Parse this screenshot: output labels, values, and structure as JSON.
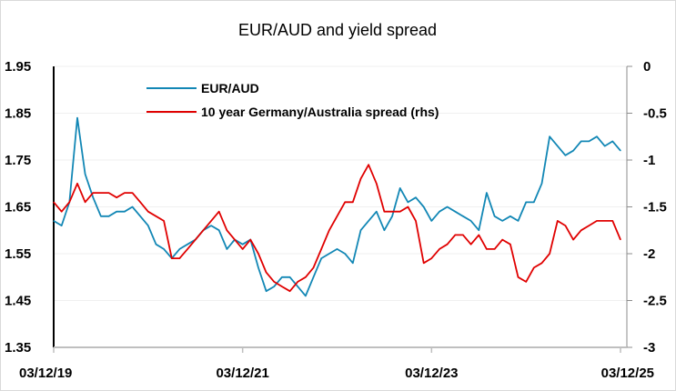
{
  "chart_data": {
    "type": "line",
    "title": "EUR/AUD and yield spread",
    "xlabel": "",
    "ylabel": "",
    "x_tick_labels": [
      "03/12/19",
      "03/12/21",
      "03/12/23",
      "03/12/25"
    ],
    "x_ticks": [
      "2019-12",
      "2021-12",
      "2023-12",
      "2025-12"
    ],
    "y_left": {
      "ylim": [
        1.35,
        1.95
      ],
      "ticks": [
        "1.35",
        "1.45",
        "1.55",
        "1.65",
        "1.75",
        "1.85",
        "1.95"
      ]
    },
    "y_right": {
      "ylim": [
        -3,
        0
      ],
      "ticks": [
        "-3",
        "-2.5",
        "-2",
        "-1.5",
        "-1",
        "-0.5",
        "0"
      ]
    },
    "grid": true,
    "legend_placement": "top-left",
    "x_start": "2019-12",
    "x_step": "monthly",
    "series": [
      {
        "name": "EUR/AUD",
        "axis": "left",
        "color": "#1287b5",
        "values": [
          1.62,
          1.61,
          1.66,
          1.84,
          1.72,
          1.67,
          1.63,
          1.63,
          1.64,
          1.64,
          1.65,
          1.63,
          1.61,
          1.57,
          1.56,
          1.54,
          1.56,
          1.57,
          1.58,
          1.6,
          1.61,
          1.6,
          1.56,
          1.58,
          1.57,
          1.58,
          1.52,
          1.47,
          1.48,
          1.5,
          1.5,
          1.48,
          1.46,
          1.5,
          1.54,
          1.55,
          1.56,
          1.55,
          1.53,
          1.6,
          1.62,
          1.64,
          1.6,
          1.63,
          1.69,
          1.66,
          1.67,
          1.65,
          1.62,
          1.64,
          1.65,
          1.64,
          1.63,
          1.62,
          1.6,
          1.68,
          1.63,
          1.62,
          1.63,
          1.62,
          1.66,
          1.66,
          1.7,
          1.8,
          1.78,
          1.76,
          1.77,
          1.79,
          1.79,
          1.8,
          1.78,
          1.79,
          1.77
        ]
      },
      {
        "name": "10 year Germany/Australia spread (rhs)",
        "axis": "right",
        "color": "#e00000",
        "values": [
          -1.45,
          -1.55,
          -1.45,
          -1.25,
          -1.45,
          -1.35,
          -1.35,
          -1.35,
          -1.4,
          -1.35,
          -1.35,
          -1.45,
          -1.55,
          -1.6,
          -1.65,
          -2.05,
          -2.05,
          -1.95,
          -1.85,
          -1.75,
          -1.65,
          -1.55,
          -1.75,
          -1.85,
          -1.95,
          -1.85,
          -2.0,
          -2.2,
          -2.3,
          -2.35,
          -2.4,
          -2.3,
          -2.25,
          -2.15,
          -1.95,
          -1.75,
          -1.6,
          -1.45,
          -1.45,
          -1.2,
          -1.05,
          -1.25,
          -1.55,
          -1.55,
          -1.55,
          -1.5,
          -1.65,
          -2.1,
          -2.05,
          -1.95,
          -1.9,
          -1.8,
          -1.8,
          -1.9,
          -1.8,
          -1.95,
          -1.95,
          -1.85,
          -1.9,
          -2.25,
          -2.3,
          -2.15,
          -2.1,
          -2.0,
          -1.65,
          -1.7,
          -1.85,
          -1.75,
          -1.7,
          -1.65,
          -1.65,
          -1.65,
          -1.85
        ]
      }
    ]
  }
}
